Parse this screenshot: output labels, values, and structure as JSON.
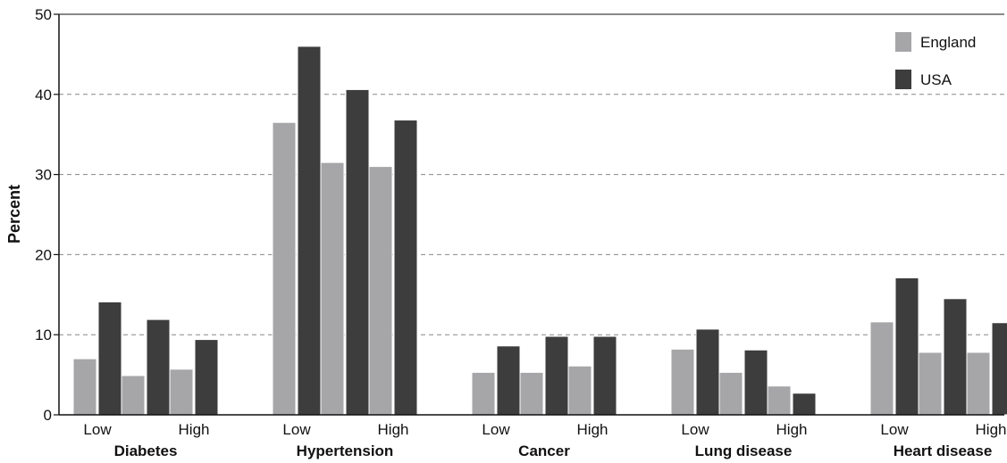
{
  "chart_data": {
    "type": "bar",
    "ylabel": "Percent",
    "ylim": [
      0,
      50
    ],
    "yticks": [
      0,
      10,
      20,
      30,
      40,
      50
    ],
    "grid": "horizontal dashed",
    "legend_position": "top-right",
    "groups": [
      "Diabetes",
      "Hypertension",
      "Cancer",
      "Lung disease",
      "Heart disease"
    ],
    "levels": [
      "Low",
      "",
      "High"
    ],
    "series": [
      {
        "name": "England",
        "color": "#a6a6a8",
        "values": [
          [
            7.0,
            4.9,
            5.7
          ],
          [
            36.5,
            31.5,
            31.0
          ],
          [
            5.3,
            5.3,
            6.1
          ],
          [
            8.2,
            5.3,
            3.6
          ],
          [
            11.6,
            7.8,
            7.8
          ]
        ]
      },
      {
        "name": "USA",
        "color": "#3d3d3d",
        "values": [
          [
            14.1,
            11.9,
            9.4
          ],
          [
            46.0,
            40.6,
            36.8
          ],
          [
            8.6,
            9.8,
            9.8
          ],
          [
            10.7,
            8.1,
            2.7
          ],
          [
            17.1,
            14.5,
            11.5
          ]
        ]
      }
    ]
  }
}
